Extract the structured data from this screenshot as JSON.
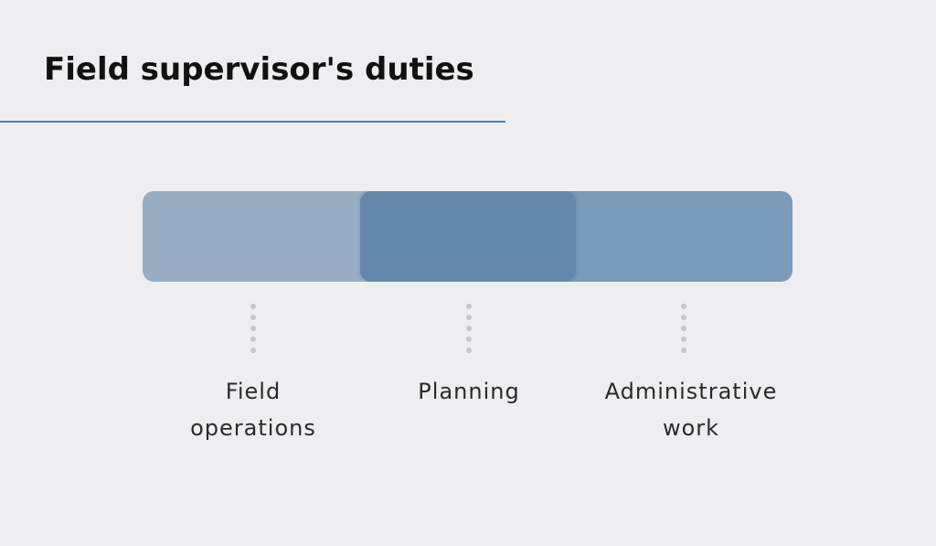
{
  "title": "Field supervisor's duties",
  "colors": {
    "background": "#eeeef0",
    "rule": "#4f80b0",
    "dot": "#c6c6c8"
  },
  "duties": [
    {
      "lines": [
        "Field",
        "operations"
      ],
      "color": "#96adc3"
    },
    {
      "lines": [
        "Planning"
      ],
      "color": "#6488ab"
    },
    {
      "lines": [
        "Administrative",
        "work"
      ],
      "color": "#7a9bb9"
    }
  ]
}
